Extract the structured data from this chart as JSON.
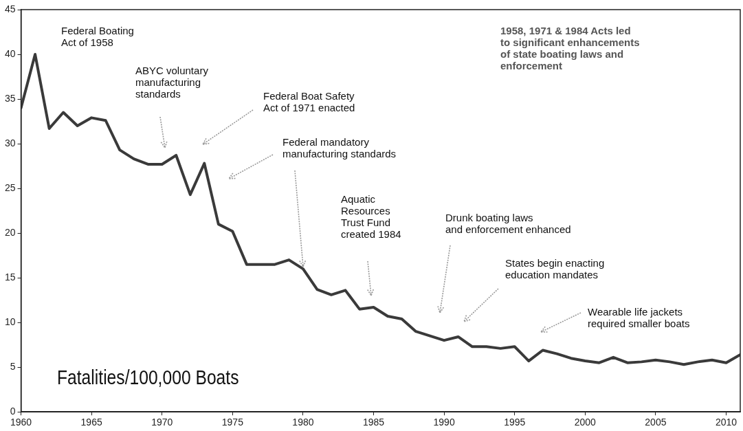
{
  "chart_data": {
    "type": "line",
    "title": "Fatalities/100,000 Boats",
    "x": [
      1960,
      1961,
      1962,
      1963,
      1964,
      1965,
      1966,
      1967,
      1968,
      1969,
      1970,
      1971,
      1972,
      1973,
      1974,
      1975,
      1976,
      1977,
      1978,
      1979,
      1980,
      1981,
      1982,
      1983,
      1984,
      1985,
      1986,
      1987,
      1988,
      1989,
      1990,
      1991,
      1992,
      1993,
      1994,
      1995,
      1996,
      1997,
      1998,
      1999,
      2000,
      2001,
      2002,
      2003,
      2004,
      2005,
      2006,
      2007,
      2008,
      2009,
      2010,
      2011
    ],
    "series": [
      {
        "color": "#3a3a3a",
        "values": [
          34,
          40,
          31.7,
          33.5,
          32,
          32.9,
          32.6,
          29.3,
          28.3,
          27.7,
          27.7,
          28.7,
          24.3,
          27.8,
          21,
          20.2,
          16.5,
          16.5,
          16.5,
          17,
          16,
          13.7,
          13.1,
          13.6,
          11.5,
          11.7,
          10.7,
          10.4,
          9,
          8.5,
          8,
          8.4,
          7.3,
          7.3,
          7.1,
          7.3,
          5.7,
          6.9,
          6.5,
          6,
          5.7,
          5.5,
          6.1,
          5.5,
          5.6,
          5.8,
          5.6,
          5.3,
          5.6,
          5.8,
          5.5,
          6.4
        ]
      }
    ],
    "xlim": [
      1960,
      2011
    ],
    "xticks": [
      1960,
      1965,
      1970,
      1975,
      1980,
      1985,
      1990,
      1995,
      2000,
      2005,
      2010
    ],
    "ylim": [
      0,
      45
    ],
    "yticks": [
      0,
      5,
      10,
      15,
      20,
      25,
      30,
      35,
      40,
      45
    ],
    "grid": false,
    "legend": false,
    "marker": "none",
    "line_style": "solid",
    "annotations": [
      "Federal Boating\nAct of 1958",
      "ABYC voluntary\nmanufacturing\nstandards",
      "Federal Boat Safety\nAct of 1971 enacted",
      {
        "text": "Federal mandatory\nmanufacturing standards",
        "x": 1980,
        "y": 16
      },
      "Aquatic\nResources\nTrust Fund\ncreated 1984",
      "Drunk boating laws\nand enforcement enhanced",
      "States begin enacting\neducation mandates",
      "Wearable life jackets\nrequired smaller boats",
      "1958, 1971 & 1984 Acts led\nto significant enhancements\nof state boating laws and\nenforcement"
    ]
  }
}
